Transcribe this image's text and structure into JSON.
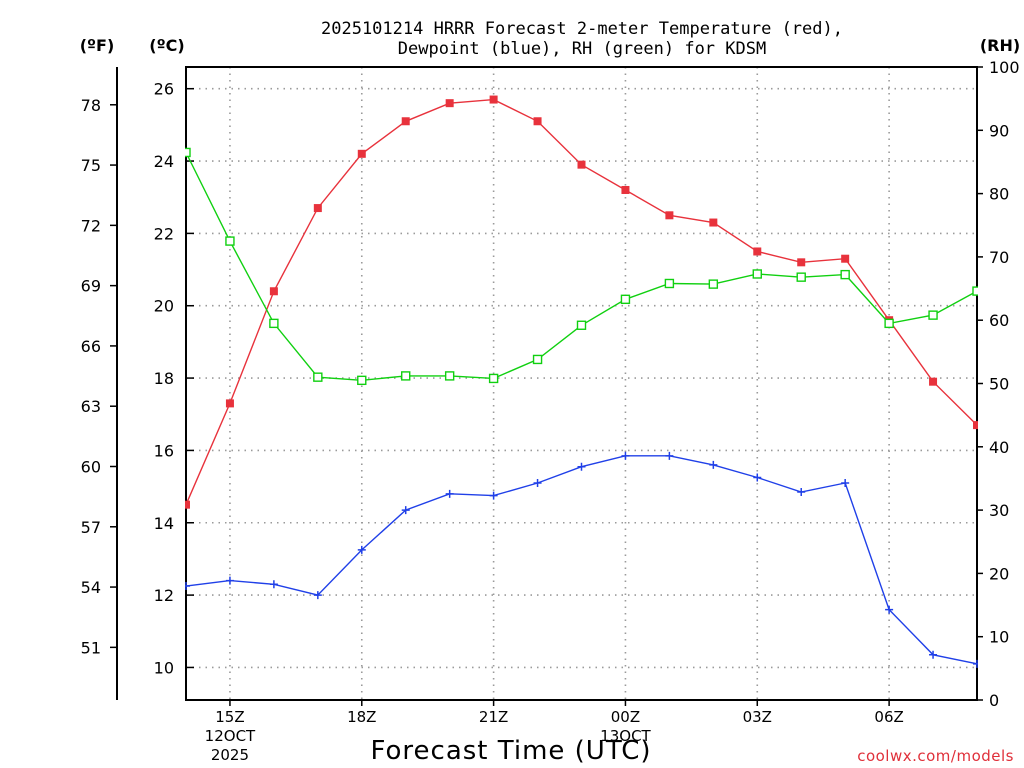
{
  "chart_data": {
    "type": "line",
    "title_lines": [
      "2025101214 HRRR Forecast 2-meter Temperature (red),",
      "Dewpoint (blue), RH (green) for KDSM"
    ],
    "xlabel": "Forecast Time (UTC)",
    "credit": "coolwx.com/models",
    "x": [
      14,
      15,
      16,
      17,
      18,
      19,
      20,
      21,
      22,
      23,
      24,
      25,
      26,
      27,
      28,
      29,
      30,
      31,
      32
    ],
    "xlim": [
      14,
      32
    ],
    "x_ticks": [
      {
        "x": 15,
        "lines": [
          "15Z",
          "12OCT",
          "2025"
        ]
      },
      {
        "x": 18,
        "lines": [
          "18Z"
        ]
      },
      {
        "x": 21,
        "lines": [
          "21Z"
        ]
      },
      {
        "x": 24,
        "lines": [
          "00Z",
          "13OCT"
        ]
      },
      {
        "x": 27,
        "lines": [
          "03Z"
        ]
      },
      {
        "x": 30,
        "lines": [
          "06Z"
        ]
      }
    ],
    "y_celsius": {
      "label": "(ºC)",
      "range": [
        9.1,
        26.6
      ],
      "ticks": [
        10,
        12,
        14,
        16,
        18,
        20,
        22,
        24,
        26
      ]
    },
    "y_fahrenheit": {
      "label": "(ºF)",
      "ticks": [
        51,
        54,
        57,
        60,
        63,
        66,
        69,
        72,
        75,
        78
      ]
    },
    "y_rh": {
      "label": "(RH)",
      "range": [
        0,
        100
      ],
      "ticks": [
        0,
        10,
        20,
        30,
        40,
        50,
        60,
        70,
        80,
        90,
        100
      ]
    },
    "series": [
      {
        "name": "Temperature",
        "color": "#e8323c",
        "marker": "filled-square",
        "axis": "celsius",
        "values": [
          14.5,
          17.3,
          20.4,
          22.7,
          24.2,
          25.1,
          25.6,
          25.7,
          25.1,
          23.9,
          23.2,
          22.5,
          22.3,
          21.5,
          21.2,
          21.3,
          19.6,
          17.9,
          16.7
        ]
      },
      {
        "name": "Dewpoint",
        "color": "#2040e8",
        "marker": "plus",
        "axis": "celsius",
        "values": [
          12.25,
          12.4,
          12.3,
          12.0,
          13.25,
          14.35,
          14.8,
          14.75,
          15.1,
          15.55,
          15.85,
          15.85,
          15.6,
          15.25,
          14.85,
          15.1,
          11.6,
          10.35,
          10.1
        ]
      },
      {
        "name": "RH",
        "color": "#10d010",
        "marker": "open-square",
        "axis": "rh",
        "values": [
          86.5,
          72.5,
          59.5,
          51.0,
          50.5,
          51.2,
          51.2,
          50.8,
          53.8,
          59.2,
          63.3,
          65.8,
          65.7,
          67.3,
          66.8,
          67.2,
          59.5,
          60.8,
          64.6
        ]
      }
    ]
  }
}
